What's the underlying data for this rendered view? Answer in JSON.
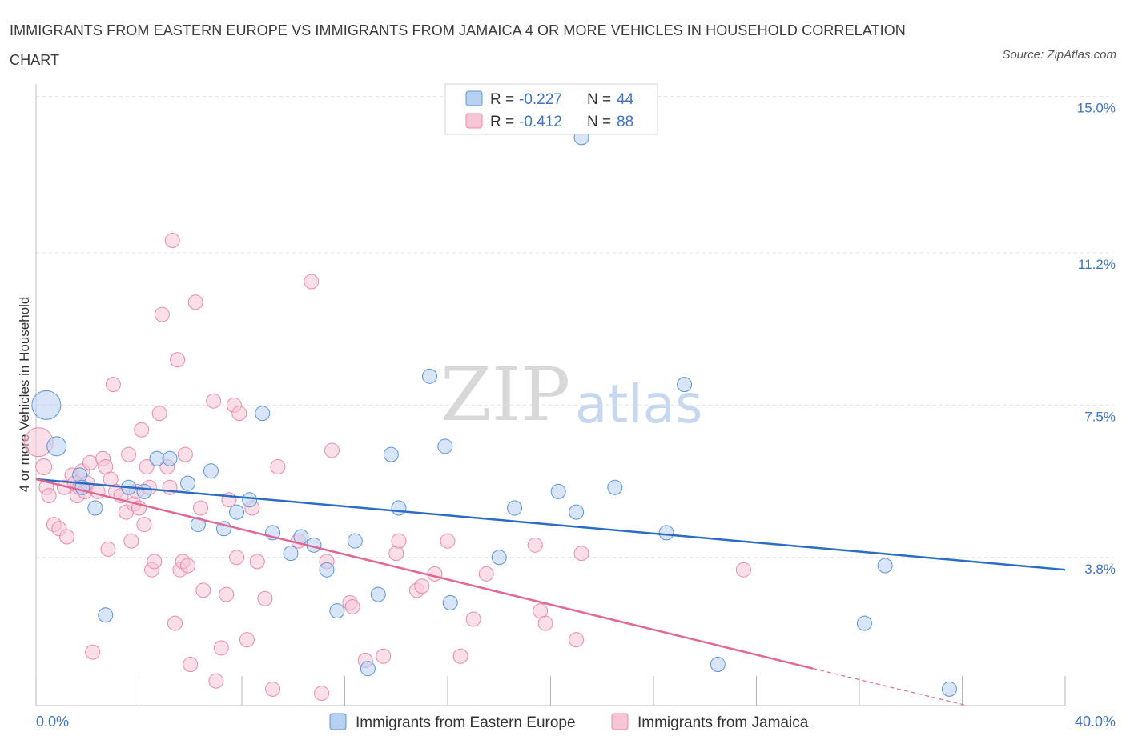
{
  "title": "IMMIGRANTS FROM EASTERN EUROPE VS IMMIGRANTS FROM JAMAICA 4 OR MORE VEHICLES IN HOUSEHOLD CORRELATION CHART",
  "source": "Source: ZipAtlas.com",
  "watermark": {
    "zip": "ZIP",
    "atlas": "atlas"
  },
  "legend": {
    "r_label": "R =",
    "n_label": "N =",
    "rows": [
      {
        "r": "-0.227",
        "n": "44"
      },
      {
        "r": "-0.412",
        "n": "88"
      }
    ]
  },
  "chart_data": {
    "type": "scatter",
    "xlabel": "",
    "ylabel": "4 or more Vehicles in Household",
    "xlim": [
      0,
      40
    ],
    "ylim": [
      0.2,
      15.3
    ],
    "x_tick_labels": [
      "0.0%",
      "40.0%"
    ],
    "y_ticks": [
      {
        "value": 15.0,
        "label": "15.0%"
      },
      {
        "value": 11.2,
        "label": "11.2%"
      },
      {
        "value": 7.5,
        "label": "7.5%"
      },
      {
        "value": 3.8,
        "label": "3.8%"
      }
    ],
    "colors": {
      "eastern_europe": "#5b93d9",
      "eastern_europe_fill": "#b8d0f2",
      "eastern_europe_line": "#2b6cc4",
      "jamaica": "#e88aaa",
      "jamaica_fill": "#f7c5d5",
      "jamaica_line": "#e06993"
    },
    "series": [
      {
        "name": "Immigrants from Eastern Europe",
        "r": -0.227,
        "n": 44,
        "trend": {
          "x0": 0,
          "y0": 5.7,
          "x1": 40,
          "y1": 3.5
        },
        "points": [
          [
            0.4,
            7.5,
            18
          ],
          [
            0.8,
            6.5,
            12
          ],
          [
            1.7,
            5.8,
            9
          ],
          [
            1.8,
            5.5,
            9
          ],
          [
            2.3,
            5.0,
            9
          ],
          [
            2.7,
            2.4,
            9
          ],
          [
            3.6,
            5.5,
            9
          ],
          [
            4.2,
            5.4,
            9
          ],
          [
            4.7,
            6.2,
            9
          ],
          [
            5.2,
            6.2,
            9
          ],
          [
            5.9,
            5.6,
            9
          ],
          [
            6.3,
            4.6,
            9
          ],
          [
            6.8,
            5.9,
            9
          ],
          [
            7.3,
            4.5,
            9
          ],
          [
            7.8,
            4.9,
            9
          ],
          [
            8.3,
            5.2,
            9
          ],
          [
            8.8,
            7.3,
            9
          ],
          [
            9.2,
            4.4,
            9
          ],
          [
            9.9,
            3.9,
            9
          ],
          [
            10.3,
            4.3,
            9
          ],
          [
            10.8,
            4.1,
            9
          ],
          [
            11.3,
            3.5,
            9
          ],
          [
            11.7,
            2.5,
            9
          ],
          [
            12.4,
            4.2,
            9
          ],
          [
            12.9,
            1.1,
            9
          ],
          [
            13.3,
            2.9,
            9
          ],
          [
            13.8,
            6.3,
            9
          ],
          [
            14.1,
            5.0,
            9
          ],
          [
            15.3,
            8.2,
            9
          ],
          [
            15.9,
            6.5,
            9
          ],
          [
            16.1,
            2.7,
            9
          ],
          [
            18.0,
            3.8,
            9
          ],
          [
            18.6,
            5.0,
            9
          ],
          [
            20.3,
            5.4,
            9
          ],
          [
            21.0,
            4.9,
            9
          ],
          [
            21.2,
            14.0,
            9
          ],
          [
            22.5,
            5.5,
            9
          ],
          [
            24.5,
            4.4,
            9
          ],
          [
            25.2,
            8.0,
            9
          ],
          [
            26.5,
            1.2,
            9
          ],
          [
            32.2,
            2.2,
            9
          ],
          [
            33.0,
            3.6,
            9
          ],
          [
            35.5,
            0.6,
            9
          ]
        ]
      },
      {
        "name": "Immigrants from Jamaica",
        "r": -0.412,
        "n": 88,
        "trend": {
          "x0": 0,
          "y0": 5.7,
          "x1": 30.2,
          "y1": 1.1
        },
        "trend_dashed": {
          "x0": 30.2,
          "y0": 1.1,
          "x1": 36.2,
          "y1": 0.2
        },
        "points": [
          [
            0.1,
            6.6,
            18
          ],
          [
            0.3,
            6.0,
            10
          ],
          [
            0.4,
            5.5,
            9
          ],
          [
            0.5,
            5.3,
            9
          ],
          [
            0.7,
            4.6,
            9
          ],
          [
            0.9,
            4.5,
            9
          ],
          [
            1.1,
            5.5,
            9
          ],
          [
            1.2,
            4.3,
            9
          ],
          [
            1.4,
            5.8,
            9
          ],
          [
            1.5,
            5.6,
            9
          ],
          [
            1.6,
            5.3,
            9
          ],
          [
            1.7,
            5.5,
            9
          ],
          [
            1.8,
            5.9,
            9
          ],
          [
            1.9,
            5.4,
            9
          ],
          [
            2.0,
            5.6,
            9
          ],
          [
            2.1,
            6.1,
            9
          ],
          [
            2.2,
            1.5,
            9
          ],
          [
            2.4,
            5.4,
            9
          ],
          [
            2.6,
            6.2,
            9
          ],
          [
            2.7,
            6.0,
            9
          ],
          [
            2.8,
            4.0,
            9
          ],
          [
            2.9,
            5.7,
            9
          ],
          [
            3.0,
            8.0,
            9
          ],
          [
            3.1,
            5.4,
            9
          ],
          [
            3.3,
            5.3,
            9
          ],
          [
            3.5,
            4.9,
            9
          ],
          [
            3.6,
            6.3,
            9
          ],
          [
            3.7,
            4.2,
            9
          ],
          [
            3.8,
            5.1,
            9
          ],
          [
            3.9,
            5.4,
            9
          ],
          [
            4.0,
            5.0,
            9
          ],
          [
            4.1,
            6.9,
            9
          ],
          [
            4.2,
            4.6,
            9
          ],
          [
            4.3,
            6.0,
            9
          ],
          [
            4.4,
            5.5,
            9
          ],
          [
            4.5,
            3.5,
            9
          ],
          [
            4.6,
            3.7,
            9
          ],
          [
            4.8,
            7.3,
            9
          ],
          [
            4.9,
            9.7,
            9
          ],
          [
            5.1,
            6.0,
            9
          ],
          [
            5.2,
            5.5,
            9
          ],
          [
            5.3,
            11.5,
            9
          ],
          [
            5.4,
            2.2,
            9
          ],
          [
            5.5,
            8.6,
            9
          ],
          [
            5.6,
            3.5,
            9
          ],
          [
            5.7,
            3.7,
            9
          ],
          [
            5.8,
            6.3,
            9
          ],
          [
            5.9,
            3.6,
            9
          ],
          [
            6.0,
            1.2,
            9
          ],
          [
            6.2,
            10.0,
            9
          ],
          [
            6.4,
            5.0,
            9
          ],
          [
            6.5,
            3.0,
            9
          ],
          [
            6.9,
            7.6,
            9
          ],
          [
            7.0,
            0.8,
            9
          ],
          [
            7.2,
            1.6,
            9
          ],
          [
            7.4,
            2.9,
            9
          ],
          [
            7.5,
            5.2,
            9
          ],
          [
            7.7,
            7.5,
            9
          ],
          [
            7.8,
            3.8,
            9
          ],
          [
            7.9,
            7.3,
            9
          ],
          [
            8.2,
            1.8,
            9
          ],
          [
            8.4,
            5.0,
            9
          ],
          [
            8.6,
            3.7,
            9
          ],
          [
            8.9,
            2.8,
            9
          ],
          [
            9.2,
            0.6,
            9
          ],
          [
            9.4,
            6.0,
            9
          ],
          [
            10.2,
            4.2,
            9
          ],
          [
            10.7,
            10.5,
            9
          ],
          [
            11.1,
            0.5,
            9
          ],
          [
            11.3,
            3.7,
            9
          ],
          [
            11.5,
            6.4,
            9
          ],
          [
            12.2,
            2.7,
            9
          ],
          [
            12.3,
            2.6,
            9
          ],
          [
            12.8,
            1.3,
            9
          ],
          [
            13.5,
            1.4,
            9
          ],
          [
            14.0,
            3.9,
            9
          ],
          [
            14.1,
            4.2,
            9
          ],
          [
            14.8,
            3.0,
            9
          ],
          [
            15.0,
            3.1,
            9
          ],
          [
            15.5,
            3.4,
            9
          ],
          [
            16.0,
            4.2,
            9
          ],
          [
            16.5,
            1.4,
            9
          ],
          [
            17.0,
            2.3,
            9
          ],
          [
            17.5,
            3.4,
            9
          ],
          [
            19.4,
            4.1,
            9
          ],
          [
            19.6,
            2.5,
            9
          ],
          [
            19.8,
            2.2,
            9
          ],
          [
            21.0,
            1.8,
            9
          ],
          [
            21.2,
            3.9,
            9
          ],
          [
            27.5,
            3.5,
            9
          ]
        ]
      }
    ]
  }
}
